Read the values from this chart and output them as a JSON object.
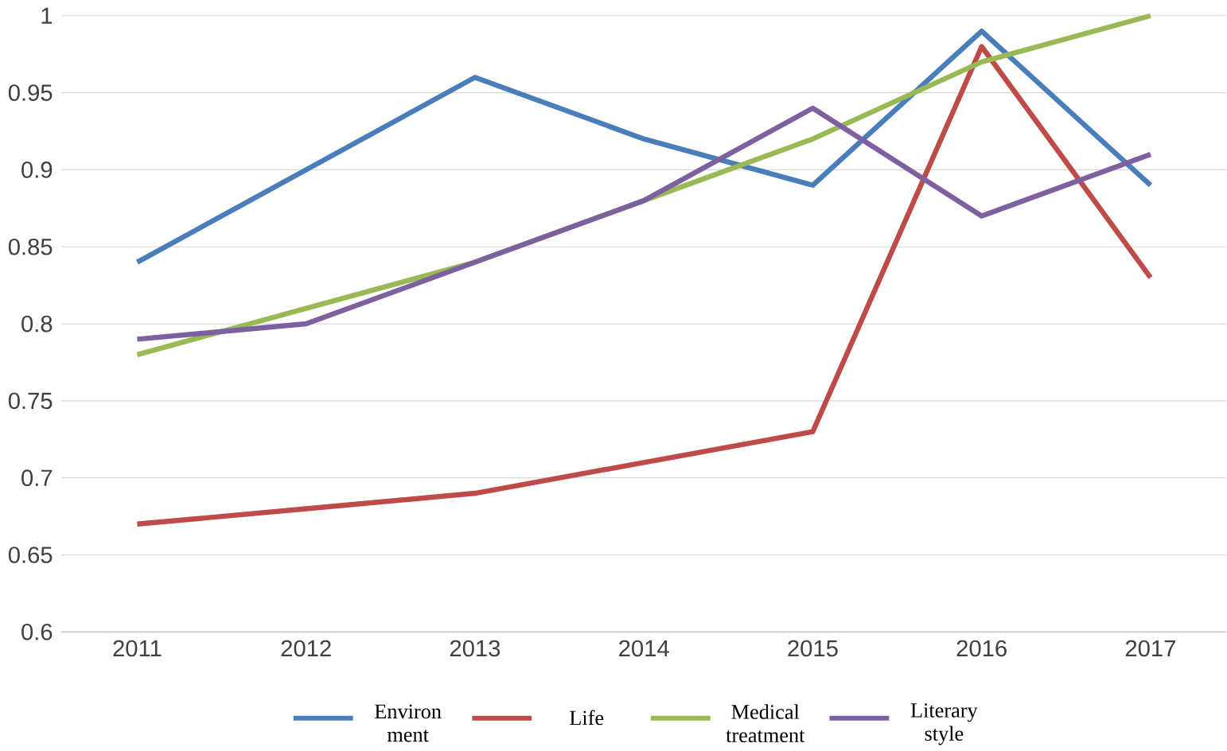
{
  "chart_data": {
    "type": "line",
    "categories": [
      "2011",
      "2012",
      "2013",
      "2014",
      "2015",
      "2016",
      "2017"
    ],
    "series": [
      {
        "name": "Environ ment",
        "color": "#4a7ebb",
        "values": [
          0.84,
          0.9,
          0.96,
          0.92,
          0.89,
          0.99,
          0.89
        ]
      },
      {
        "name": "Life",
        "color": "#be4b48",
        "values": [
          0.67,
          0.68,
          0.69,
          0.71,
          0.73,
          0.98,
          0.83
        ]
      },
      {
        "name": "Medical treatment",
        "color": "#98b954",
        "values": [
          0.78,
          0.81,
          0.84,
          0.88,
          0.92,
          0.97,
          1.0
        ]
      },
      {
        "name": "Literary style",
        "color": "#7d60a0",
        "values": [
          0.79,
          0.8,
          0.84,
          0.88,
          0.94,
          0.87,
          0.91
        ]
      }
    ],
    "ylim": [
      0.6,
      1
    ],
    "yticks": [
      0.6,
      0.65,
      0.7,
      0.75,
      0.8,
      0.85,
      0.9,
      0.95,
      1
    ],
    "grid": "y",
    "legend": "bottom",
    "marker": "none",
    "line_style": "solid"
  }
}
